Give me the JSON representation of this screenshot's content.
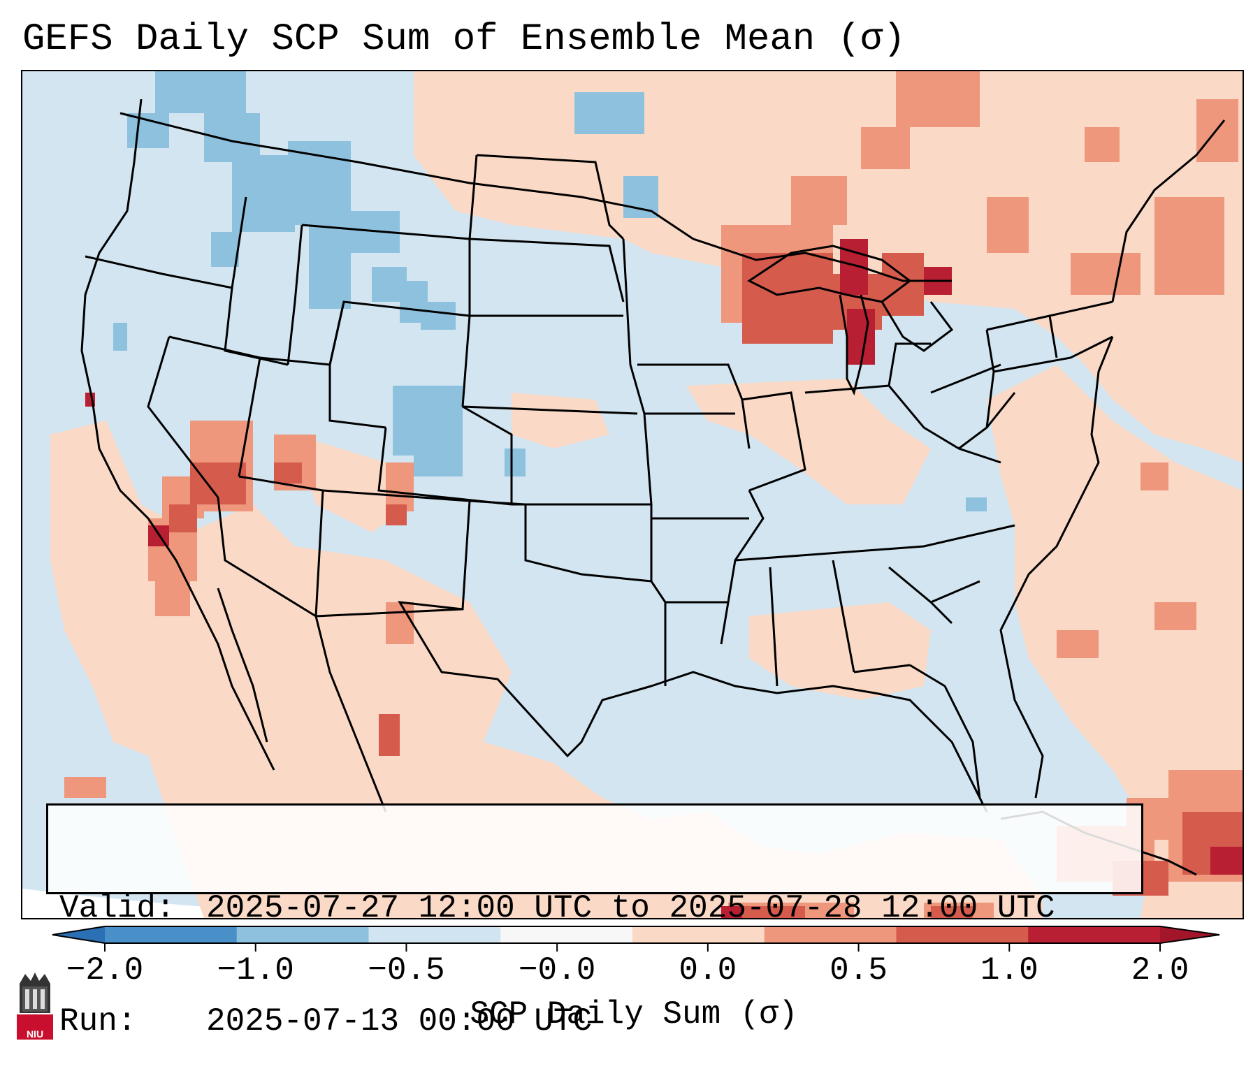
{
  "title": "GEFS Daily SCP Sum of Ensemble Mean (σ)",
  "info": {
    "valid_label": "Valid:",
    "valid_value": "2025-07-27 12:00 UTC to 2025-07-28 12:00 UTC",
    "run_label": "Run:",
    "run_value": "2025-07-13 00:00 UTC"
  },
  "colorbar": {
    "label": "SCP Daily Sum (σ)",
    "ticks": [
      "−2.0",
      "−1.0",
      "−0.5",
      "−0.0",
      "0.0",
      "0.5",
      "1.0",
      "2.0"
    ],
    "colors": [
      "#4a90c8",
      "#8dc1de",
      "#d0e4f1",
      "#f7f7f7",
      "#fad9c6",
      "#ee977c",
      "#d55b4c",
      "#b81f33"
    ],
    "extend_colors": {
      "low": "#2b6fb5",
      "high": "#a2152a"
    }
  },
  "map_colors": {
    "ocean_far": "#d2e5f1",
    "land_neutral": "#d2e5f1",
    "slight_positive": "#fad9c6",
    "positive": "#ee977c",
    "strong_positive": "#d55b4c",
    "extreme_positive": "#b81f33",
    "negative": "#8dc1de"
  },
  "logo": {
    "text": "NIU",
    "color": "#c8102e"
  }
}
